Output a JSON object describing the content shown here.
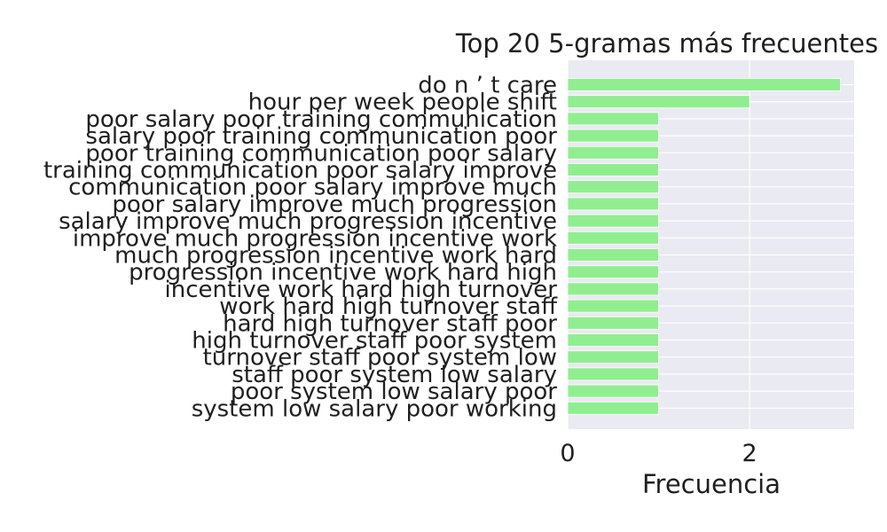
{
  "chart_data": {
    "type": "bar",
    "orientation": "horizontal",
    "title": "Top 20 5-gramas más frecuentes",
    "xlabel": "Frecuencia",
    "ylabel": "",
    "xlim": [
      0,
      3.15
    ],
    "xticks": [
      "0",
      "2"
    ],
    "grid": true,
    "bar_color": "#90ee90",
    "plot_background": "#eaeaf2",
    "categories": [
      "do n ’ t care",
      "hour per week people shift",
      "poor salary poor training communication",
      "salary poor training communication poor",
      "poor training communication poor salary",
      "training communication poor salary improve",
      "communication poor salary improve much",
      "poor salary improve much progression",
      "salary improve much progression incentive",
      "improve much progression incentive work",
      "much progression incentive work hard",
      "progression incentive work hard high",
      "incentive work hard high turnover",
      "work hard high turnover staff",
      "hard high turnover staff poor",
      "high turnover staff poor system",
      "turnover staff poor system low",
      "staff poor system low salary",
      "poor system low salary poor",
      "system low salary poor working"
    ],
    "values": [
      3,
      2,
      1,
      1,
      1,
      1,
      1,
      1,
      1,
      1,
      1,
      1,
      1,
      1,
      1,
      1,
      1,
      1,
      1,
      1
    ]
  }
}
